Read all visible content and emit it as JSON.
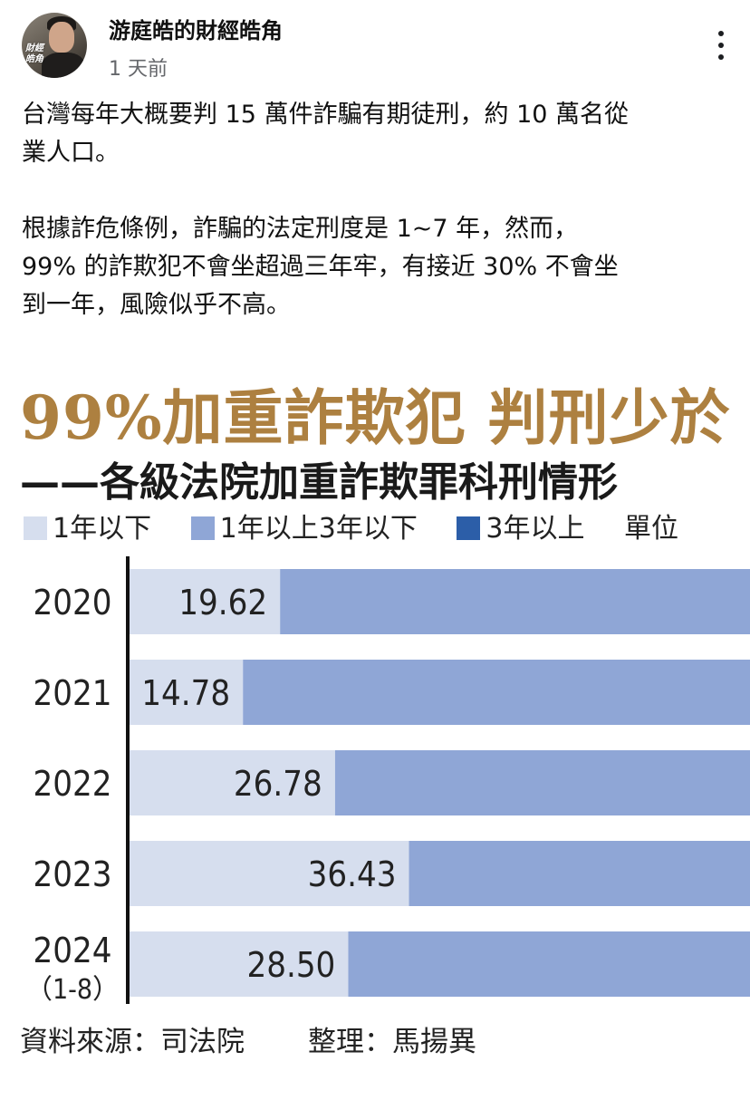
{
  "post": {
    "author": "游庭皓的財經皓角",
    "time": "1 天前",
    "paragraph_1": "台灣每年大概要判 15 萬件詐騙有期徒刑，約 10 萬名從\n業人口。",
    "paragraph_2": "根據詐危條例，詐騙的法定刑度是 1~7 年，然而，\n99% 的詐欺犯不會坐超過三年牢，有接近 30% 不會坐\n到一年，風險似乎不高。"
  },
  "avatar": {
    "logo_text": "財經皓角"
  },
  "chart_data": {
    "type": "bar",
    "orientation": "horizontal",
    "stacked": true,
    "title": "99%加重詐欺犯 判刑少於",
    "subtitle": "——各級法院加重詐欺罪科刑情形",
    "unit_label": "單位",
    "categories": [
      "2020",
      "2021",
      "2022",
      "2023",
      "2024"
    ],
    "category_sublabels": [
      "",
      "",
      "",
      "",
      "（1-8）"
    ],
    "series": [
      {
        "name": "1年以下",
        "color": "#d6deee",
        "values": [
          19.62,
          14.78,
          26.78,
          36.43,
          28.5
        ]
      },
      {
        "name": "1年以上3年以下",
        "color": "#8fa6d6",
        "values": [
          null,
          null,
          null,
          null,
          null
        ]
      },
      {
        "name": "3年以上",
        "color": "#2c5ea8",
        "values": [
          null,
          null,
          null,
          null,
          null
        ]
      }
    ],
    "data_labels": [
      "19.62",
      "14.78",
      "26.78",
      "36.43",
      "28.50"
    ],
    "xlim": [
      0,
      100
    ],
    "visible_x_max": 80.9,
    "grid": false,
    "legend_position": "top"
  },
  "source": {
    "data_source": "資料來源：司法院",
    "compiled_by": "整理：馬揚異"
  }
}
